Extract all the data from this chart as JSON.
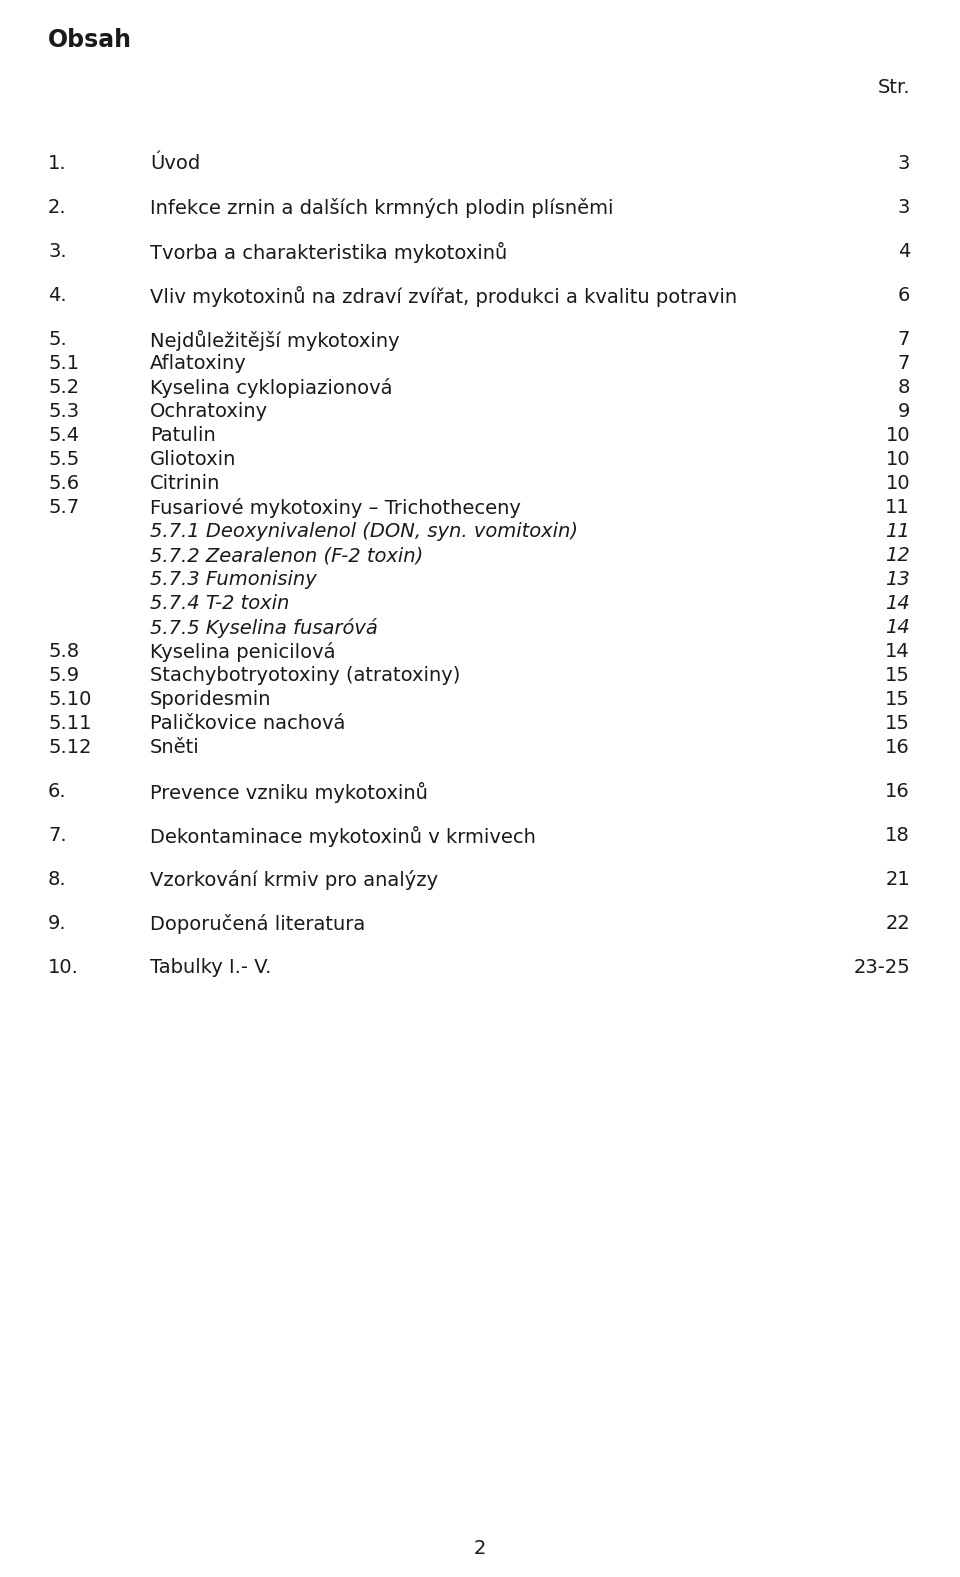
{
  "title": "Obsah",
  "header_right": "Str.",
  "background_color": "#ffffff",
  "text_color": "#1a1a1a",
  "entries": [
    {
      "num": "1.",
      "text": "Úvod",
      "page": "3",
      "indent": 0,
      "italic": false,
      "gap": "large"
    },
    {
      "num": "2.",
      "text": "Infekce zrnin a dalších krmných plodin plísněmi",
      "page": "3",
      "indent": 0,
      "italic": false,
      "gap": "large"
    },
    {
      "num": "3.",
      "text": "Tvorba a charakteristika mykotoxinů",
      "page": "4",
      "indent": 0,
      "italic": false,
      "gap": "large"
    },
    {
      "num": "4.",
      "text": "Vliv mykotoxinů na zdraví zvířat, produkci a kvalitu potravin",
      "page": "6",
      "indent": 0,
      "italic": false,
      "gap": "large"
    },
    {
      "num": "5.",
      "text": "Nejdůležitější mykotoxiny",
      "page": "7",
      "indent": 0,
      "italic": false,
      "gap": "large"
    },
    {
      "num": "5.1",
      "text": "Aflatoxiny",
      "page": "7",
      "indent": 1,
      "italic": false,
      "gap": "small"
    },
    {
      "num": "5.2",
      "text": "Kyselina cyklopiazionová",
      "page": "8",
      "indent": 1,
      "italic": false,
      "gap": "small"
    },
    {
      "num": "5.3",
      "text": "Ochratoxiny",
      "page": "9",
      "indent": 1,
      "italic": false,
      "gap": "small"
    },
    {
      "num": "5.4",
      "text": "Patulin",
      "page": "10",
      "indent": 1,
      "italic": false,
      "gap": "small"
    },
    {
      "num": "5.5",
      "text": "Gliotoxin",
      "page": "10",
      "indent": 1,
      "italic": false,
      "gap": "small"
    },
    {
      "num": "5.6",
      "text": "Citrinin",
      "page": "10",
      "indent": 1,
      "italic": false,
      "gap": "small"
    },
    {
      "num": "5.7",
      "text": "Fusariové mykotoxiny – Trichotheceny",
      "page": "11",
      "indent": 1,
      "italic": false,
      "gap": "small"
    },
    {
      "num": "5.7.1",
      "text": "Deoxynivalenol (DON, syn. vomitoxin)",
      "page": "11",
      "indent": 2,
      "italic": true,
      "gap": "small"
    },
    {
      "num": "5.7.2",
      "text": "Zearalenon (F-2 toxin)",
      "page": "12",
      "indent": 2,
      "italic": true,
      "gap": "small"
    },
    {
      "num": "5.7.3",
      "text": "Fumonisiny",
      "page": "13",
      "indent": 2,
      "italic": true,
      "gap": "small"
    },
    {
      "num": "5.7.4",
      "text": "T-2 toxin",
      "page": "14",
      "indent": 2,
      "italic": true,
      "gap": "small"
    },
    {
      "num": "5.7.5",
      "text": "Kyselina fusaróvá",
      "page": "14",
      "indent": 2,
      "italic": true,
      "gap": "small"
    },
    {
      "num": "5.8",
      "text": "Kyselina penicilová",
      "page": "14",
      "indent": 1,
      "italic": false,
      "gap": "small"
    },
    {
      "num": "5.9",
      "text": "Stachybotryotoxiny (atratoxiny)",
      "page": "15",
      "indent": 1,
      "italic": false,
      "gap": "small"
    },
    {
      "num": "5.10",
      "text": "Sporidesmin",
      "page": "15",
      "indent": 1,
      "italic": false,
      "gap": "small"
    },
    {
      "num": "5.11",
      "text": "Paličkovice nachová",
      "page": "15",
      "indent": 1,
      "italic": false,
      "gap": "small"
    },
    {
      "num": "5.12",
      "text": "Sněti",
      "page": "16",
      "indent": 1,
      "italic": false,
      "gap": "small"
    },
    {
      "num": "6.",
      "text": "Prevence vzniku mykotoxinů",
      "page": "16",
      "indent": 0,
      "italic": false,
      "gap": "large"
    },
    {
      "num": "7.",
      "text": "Dekontaminace mykotoxinů v krmivech",
      "page": "18",
      "indent": 0,
      "italic": false,
      "gap": "large"
    },
    {
      "num": "8.",
      "text": "Vzorkování krmiv pro analýzy",
      "page": "21",
      "indent": 0,
      "italic": false,
      "gap": "large"
    },
    {
      "num": "9.",
      "text": "Doporučená literatura",
      "page": "22",
      "indent": 0,
      "italic": false,
      "gap": "large"
    },
    {
      "num": "10.",
      "text": "Tabulky I.- V.",
      "page": "23-25",
      "indent": 0,
      "italic": false,
      "gap": "large"
    }
  ],
  "page_number": "2",
  "font_size": 14,
  "font_size_title": 17
}
